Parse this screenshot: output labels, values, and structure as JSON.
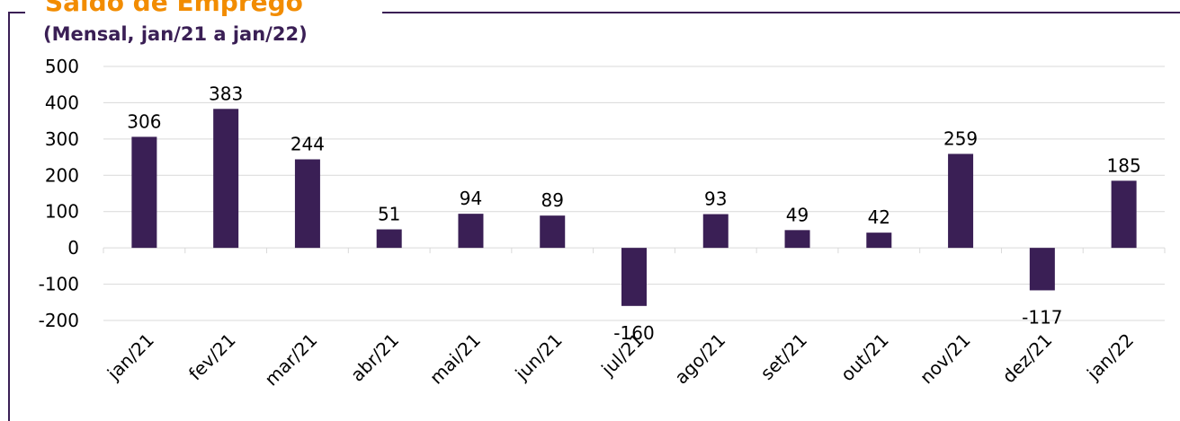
{
  "chart_data": {
    "type": "bar",
    "title": "Saldo de Emprego",
    "subtitle": "(Mensal, jan/21 a jan/22)",
    "categories": [
      "jan/21",
      "fev/21",
      "mar/21",
      "abr/21",
      "mai/21",
      "jun/21",
      "jul/21",
      "ago/21",
      "set/21",
      "out/21",
      "nov/21",
      "dez/21",
      "jan/22"
    ],
    "values": [
      306,
      383,
      244,
      51,
      94,
      89,
      -160,
      93,
      49,
      42,
      259,
      -117,
      185
    ],
    "color": "#3a1f55",
    "ylim": [
      -200,
      500
    ],
    "yticks": [
      -200,
      -100,
      0,
      100,
      200,
      300,
      400,
      500
    ],
    "grid": true
  }
}
